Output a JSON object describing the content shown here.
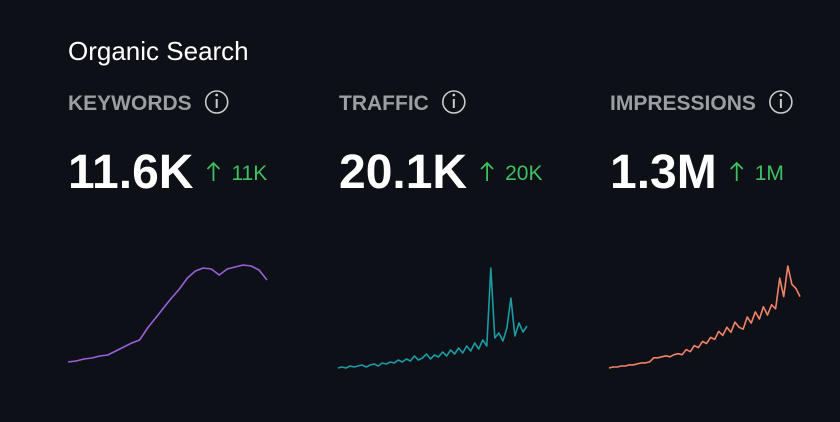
{
  "title": "Organic Search",
  "chart_data": [
    {
      "type": "line",
      "title": "KEYWORDS",
      "value": "11.6K",
      "change": "11K",
      "series": [
        {
          "color": "#9b5fd8",
          "values": [
            0,
            1,
            3,
            4,
            6,
            7,
            11,
            15,
            19,
            22,
            34,
            44,
            54,
            64,
            73,
            84,
            91,
            94,
            93,
            87,
            93,
            95,
            97,
            96,
            92,
            82
          ]
        }
      ]
    },
    {
      "type": "line",
      "title": "TRAFFIC",
      "value": "20.1K",
      "change": "20K",
      "series": [
        {
          "color": "#1b9ba3",
          "values": [
            0,
            1,
            0,
            2,
            1,
            2,
            3,
            1,
            3,
            4,
            2,
            5,
            4,
            6,
            5,
            8,
            6,
            9,
            7,
            12,
            8,
            10,
            14,
            9,
            13,
            11,
            16,
            12,
            18,
            14,
            20,
            15,
            22,
            17,
            25,
            19,
            28,
            22,
            100,
            30,
            35,
            27,
            40,
            70,
            32,
            45,
            36,
            42
          ]
        }
      ]
    },
    {
      "type": "line",
      "title": "IMPRESSIONS",
      "value": "1.3M",
      "change": "1M",
      "series": [
        {
          "color": "#f2836a",
          "values": [
            0,
            1,
            1,
            2,
            2,
            3,
            3,
            4,
            5,
            5,
            6,
            10,
            10,
            11,
            12,
            11,
            13,
            14,
            13,
            18,
            16,
            22,
            20,
            26,
            24,
            30,
            28,
            36,
            32,
            40,
            35,
            45,
            40,
            38,
            50,
            44,
            55,
            48,
            60,
            52,
            62,
            58,
            88,
            70,
            100,
            82,
            78,
            70
          ]
        }
      ]
    }
  ]
}
